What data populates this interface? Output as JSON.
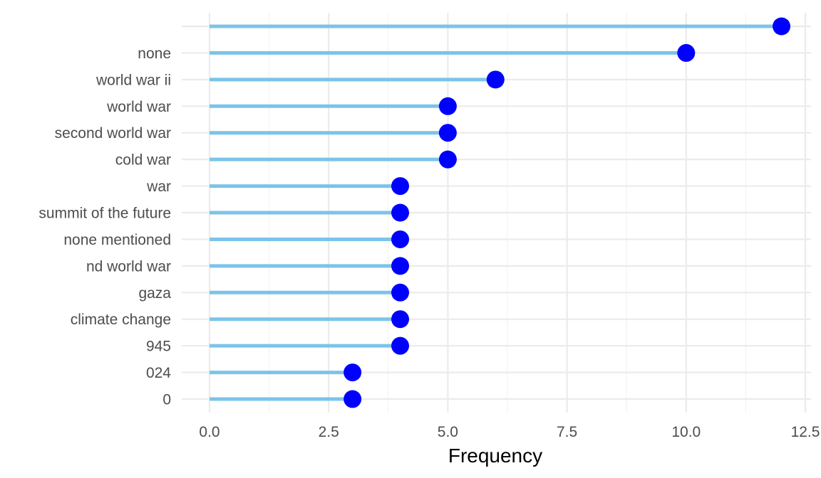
{
  "chart_data": {
    "type": "lollipop",
    "orientation": "horizontal",
    "xlabel": "Frequency",
    "ylabel": "",
    "title": "",
    "xlim": [
      0,
      12.5
    ],
    "xticks": [
      0,
      2.5,
      5,
      7.5,
      10,
      12.5
    ],
    "xtick_labels": [
      "0.0",
      "2.5",
      "5.0",
      "7.5",
      "10.0",
      "12.5"
    ],
    "grid": true,
    "legend": "none",
    "colors": {
      "stem": "#7bc4e8",
      "dot": "#0000ff",
      "grid": "#ebebeb"
    },
    "categories": [
      "",
      "none",
      "world war ii",
      "world war",
      "second world war",
      "cold war",
      "war",
      "summit of the future",
      "none mentioned",
      "nd world war",
      "gaza",
      "climate change",
      "945",
      "024",
      "0"
    ],
    "values": [
      12,
      10,
      6,
      5,
      5,
      5,
      4,
      4,
      4,
      4,
      4,
      4,
      4,
      3,
      3
    ]
  }
}
